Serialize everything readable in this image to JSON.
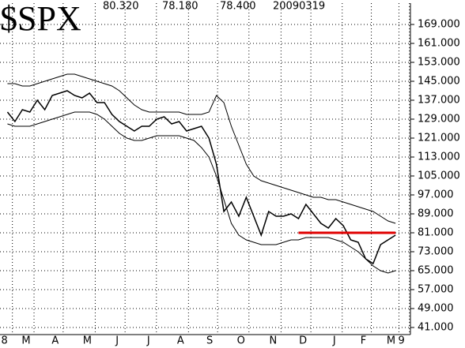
{
  "chart_data": {
    "type": "line",
    "title": "$SPX",
    "annotations": [
      "80.320",
      "78.180",
      "78.400",
      "20090319"
    ],
    "xlim": [
      -1,
      54
    ],
    "ylim": [
      38,
      178
    ],
    "grid": true,
    "xticks": [
      {
        "value": -0.4,
        "label": "8"
      },
      {
        "value": 2.5,
        "label": "M"
      },
      {
        "value": 6.4,
        "label": "A"
      },
      {
        "value": 10.7,
        "label": "M"
      },
      {
        "value": 14.7,
        "label": "J"
      },
      {
        "value": 18.9,
        "label": "J"
      },
      {
        "value": 23.2,
        "label": "A"
      },
      {
        "value": 27.1,
        "label": "S"
      },
      {
        "value": 31.3,
        "label": "O"
      },
      {
        "value": 35.6,
        "label": "N"
      },
      {
        "value": 39.6,
        "label": "D"
      },
      {
        "value": 43.8,
        "label": "J"
      },
      {
        "value": 47.7,
        "label": "F"
      },
      {
        "value": 51.4,
        "label": "M"
      },
      {
        "value": 52.8,
        "label": "9"
      }
    ],
    "yticks": [
      {
        "value": 41,
        "label": "41.000"
      },
      {
        "value": 49,
        "label": "49.000"
      },
      {
        "value": 57,
        "label": "57.000"
      },
      {
        "value": 65,
        "label": "65.000"
      },
      {
        "value": 73,
        "label": "73.000"
      },
      {
        "value": 81,
        "label": "81.000"
      },
      {
        "value": 89,
        "label": "89.000"
      },
      {
        "value": 97,
        "label": "97.000"
      },
      {
        "value": 105,
        "label": "105.000"
      },
      {
        "value": 113,
        "label": "113.000"
      },
      {
        "value": 121,
        "label": "121.000"
      },
      {
        "value": 129,
        "label": "129.000"
      },
      {
        "value": 137,
        "label": "137.000"
      },
      {
        "value": 145,
        "label": "145.000"
      },
      {
        "value": 153,
        "label": "153.000"
      },
      {
        "value": 161,
        "label": "161.000"
      },
      {
        "value": 169,
        "label": "169.000"
      }
    ],
    "x": [
      0,
      1,
      2,
      3,
      4,
      5,
      6,
      7,
      8,
      9,
      10,
      11,
      12,
      13,
      14,
      15,
      16,
      17,
      18,
      19,
      20,
      21,
      22,
      23,
      24,
      25,
      26,
      27,
      28,
      29,
      30,
      31,
      32,
      33,
      34,
      35,
      36,
      37,
      38,
      39,
      40,
      41,
      42,
      43,
      44,
      45,
      46,
      47,
      48,
      49,
      50,
      51,
      52
    ],
    "series": [
      {
        "color": "#000000",
        "values": [
          132,
          128,
          133,
          132,
          137,
          133,
          139,
          140,
          141,
          139,
          138,
          140,
          136,
          136,
          131,
          128,
          126,
          124,
          126,
          126,
          129,
          130,
          127,
          128,
          124,
          125,
          126,
          121,
          110,
          90,
          94,
          88,
          96,
          88,
          80,
          90,
          88,
          88,
          89,
          87,
          93,
          89,
          85,
          83,
          87,
          84,
          78,
          77,
          70,
          68,
          76,
          78,
          80
        ]
      },
      {
        "color": "#000000",
        "values": [
          144,
          144,
          143,
          143,
          144,
          145,
          146,
          147,
          148,
          148,
          147,
          146,
          145,
          144,
          143,
          141,
          138,
          135,
          133,
          132,
          132,
          132,
          132,
          132,
          131,
          131,
          131,
          132,
          139,
          136,
          126,
          118,
          110,
          105,
          103,
          102,
          101,
          100,
          99,
          98,
          97,
          96,
          96,
          95,
          95,
          94,
          93,
          92,
          91,
          90,
          88,
          86,
          85
        ]
      },
      {
        "color": "#000000",
        "values": [
          127,
          126,
          126,
          126,
          127,
          128,
          129,
          130,
          131,
          132,
          132,
          132,
          131,
          129,
          126,
          123,
          121,
          120,
          120,
          121,
          122,
          122,
          122,
          122,
          121,
          120,
          117,
          113,
          105,
          95,
          85,
          80,
          78,
          77,
          76,
          76,
          76,
          77,
          78,
          78,
          79,
          79,
          79,
          79,
          78,
          77,
          75,
          73,
          70,
          67,
          65,
          64,
          65
        ]
      }
    ],
    "hline": {
      "y": 81,
      "x": [
        39,
        52
      ],
      "color": "#e00000"
    }
  }
}
